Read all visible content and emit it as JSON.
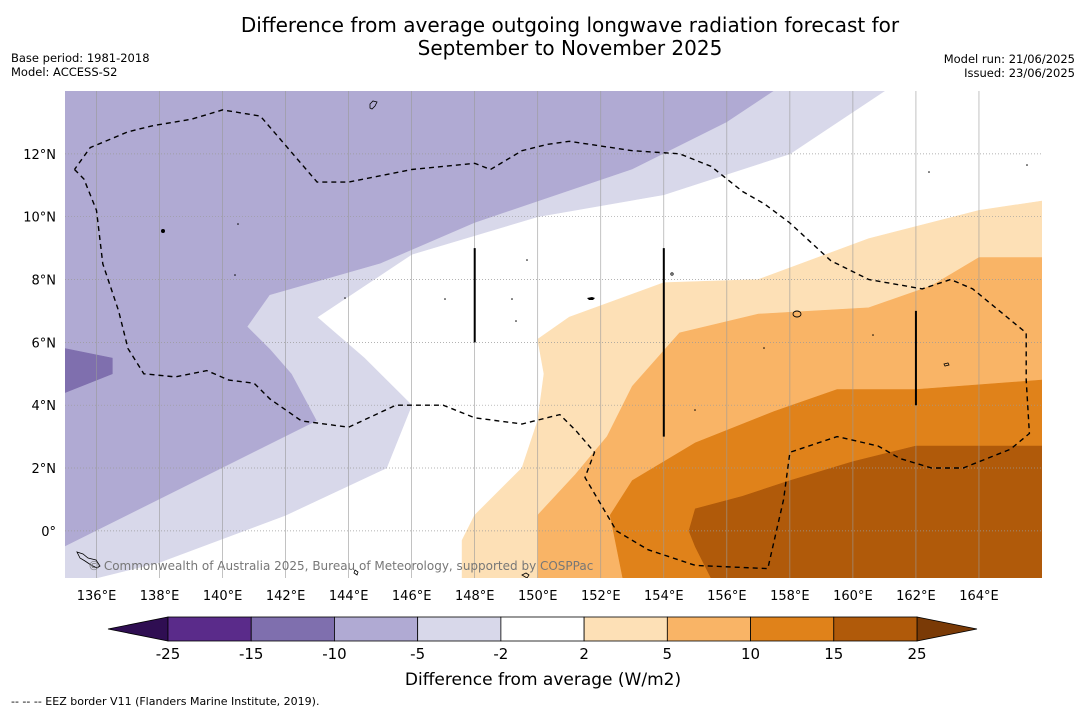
{
  "title": {
    "line1": "Difference from average outgoing longwave radiation forecast for",
    "line2": "September to November 2025"
  },
  "meta": {
    "base_period": "Base period: 1981-2018",
    "model": "Model: ACCESS-S2",
    "model_run": "Model run: 21/06/2025",
    "issued": "Issued: 23/06/2025"
  },
  "copyright": "© Commonwealth of Australia 2025, Bureau of Meteorology, supported by COSPPac",
  "footnote": "--  --  -- EEZ border V11 (Flanders Marine Institute, 2019).",
  "chart_data": {
    "type": "heatmap",
    "title": "Difference from average outgoing longwave radiation forecast for September to November 2025",
    "x_ticks": [
      "136°E",
      "138°E",
      "140°E",
      "142°E",
      "144°E",
      "146°E",
      "148°E",
      "150°E",
      "152°E",
      "154°E",
      "156°E",
      "158°E",
      "160°E",
      "162°E",
      "164°E"
    ],
    "x_values": [
      136,
      138,
      140,
      142,
      144,
      146,
      148,
      150,
      152,
      154,
      156,
      158,
      160,
      162,
      164
    ],
    "y_ticks": [
      "0°",
      "2°N",
      "4°N",
      "6°N",
      "8°N",
      "10°N",
      "12°N"
    ],
    "y_values": [
      0,
      2,
      4,
      6,
      8,
      10,
      12
    ],
    "xlim": [
      135,
      166
    ],
    "ylim": [
      -1.5,
      14
    ],
    "grid": true,
    "colorbar": {
      "label": "Difference from average (W/m2)",
      "tick_labels": [
        "-25",
        "-15",
        "-10",
        "-5",
        "-2",
        "2",
        "5",
        "10",
        "15",
        "25"
      ],
      "colors": [
        "#5a2b8a",
        "#7f6fae",
        "#b0aad3",
        "#d8d8ea",
        "#ffffff",
        "#fde0b6",
        "#f9b466",
        "#e0821a",
        "#b05a0a"
      ],
      "extend_low_color": "#2f0e52",
      "extend_high_color": "#7a3a06"
    },
    "regions": [
      {
        "class": "-10 to -5",
        "color": "#b0aad3",
        "polygon": [
          [
            135,
            14
          ],
          [
            157.5,
            14
          ],
          [
            156,
            13
          ],
          [
            153,
            11.5
          ],
          [
            148,
            9.8
          ],
          [
            145,
            8.5
          ],
          [
            141.5,
            7.5
          ],
          [
            140.8,
            6.5
          ],
          [
            141.5,
            5.8
          ],
          [
            142.2,
            5
          ],
          [
            143,
            3.5
          ],
          [
            140,
            2
          ],
          [
            136,
            0
          ],
          [
            135,
            -0.5
          ]
        ]
      },
      {
        "class": "-5 to -2",
        "color": "#d8d8ea",
        "polygon": [
          [
            157.5,
            14
          ],
          [
            161,
            14
          ],
          [
            158,
            12
          ],
          [
            154,
            10.7
          ],
          [
            150,
            10
          ],
          [
            146,
            8.8
          ],
          [
            143,
            6.8
          ],
          [
            144.5,
            5.5
          ],
          [
            146,
            4
          ],
          [
            145.2,
            2
          ],
          [
            142,
            0.5
          ],
          [
            138,
            -1
          ],
          [
            136,
            -1.5
          ],
          [
            135,
            -1.5
          ],
          [
            135,
            -0.5
          ],
          [
            136,
            0
          ],
          [
            140,
            2
          ],
          [
            143,
            3.5
          ],
          [
            142.2,
            5
          ],
          [
            141.5,
            5.8
          ],
          [
            140.8,
            6.5
          ],
          [
            141.5,
            7.5
          ],
          [
            145,
            8.5
          ],
          [
            148,
            9.8
          ],
          [
            153,
            11.5
          ],
          [
            156,
            13
          ]
        ]
      },
      {
        "class": "-15 to -10",
        "color": "#7f6fae",
        "polygon": [
          [
            135,
            5.8
          ],
          [
            136.5,
            5.5
          ],
          [
            136.5,
            5
          ],
          [
            135,
            4.4
          ]
        ]
      },
      {
        "class": "2 to 5",
        "color": "#fde0b6",
        "polygon": [
          [
            166,
            10.5
          ],
          [
            164,
            10.2
          ],
          [
            160.5,
            9.3
          ],
          [
            157,
            8
          ],
          [
            154,
            7.9
          ],
          [
            151,
            6.8
          ],
          [
            150,
            6.1
          ],
          [
            150.2,
            5
          ],
          [
            150,
            3.5
          ],
          [
            149.5,
            2
          ],
          [
            148,
            0.5
          ],
          [
            147.6,
            -0.3
          ],
          [
            147.6,
            -1.5
          ],
          [
            166,
            -1.5
          ]
        ]
      },
      {
        "class": "5 to 10",
        "color": "#f9b466",
        "polygon": [
          [
            166,
            8.7
          ],
          [
            164,
            8.7
          ],
          [
            162.5,
            7.8
          ],
          [
            160.5,
            7.1
          ],
          [
            157,
            6.9
          ],
          [
            154.5,
            6.3
          ],
          [
            153,
            4.6
          ],
          [
            152.2,
            3
          ],
          [
            151.2,
            1.8
          ],
          [
            150,
            0.5
          ],
          [
            150,
            -1.5
          ],
          [
            166,
            -1.5
          ]
        ]
      },
      {
        "class": "10 to 15",
        "color": "#e0821a",
        "polygon": [
          [
            166,
            4.8
          ],
          [
            162,
            4.5
          ],
          [
            159.5,
            4.5
          ],
          [
            157.5,
            3.8
          ],
          [
            155,
            2.8
          ],
          [
            153,
            1.6
          ],
          [
            152.3,
            0.5
          ],
          [
            152.7,
            -1.5
          ],
          [
            166,
            -1.5
          ]
        ]
      },
      {
        "class": "15 to 25",
        "color": "#b05a0a",
        "polygon": [
          [
            166,
            2.7
          ],
          [
            162,
            2.7
          ],
          [
            160,
            2.2
          ],
          [
            158,
            1.6
          ],
          [
            156.5,
            1.1
          ],
          [
            155,
            0.7
          ],
          [
            154.8,
            0
          ],
          [
            155,
            -0.5
          ],
          [
            155.5,
            -1.5
          ],
          [
            166,
            -1.5
          ]
        ]
      }
    ],
    "eez_border": [
      [
        135.3,
        11.5
      ],
      [
        135.6,
        11.2
      ],
      [
        136,
        10.2
      ],
      [
        136.2,
        8.5
      ],
      [
        136.7,
        7
      ],
      [
        137,
        5.8
      ],
      [
        137.5,
        5
      ],
      [
        138.5,
        4.9
      ],
      [
        139.5,
        5.1
      ],
      [
        140.2,
        4.8
      ],
      [
        141,
        4.7
      ],
      [
        141.5,
        4.2
      ],
      [
        142.5,
        3.5
      ],
      [
        144,
        3.3
      ],
      [
        145.5,
        4
      ],
      [
        147,
        4
      ],
      [
        148,
        3.6
      ],
      [
        149.5,
        3.4
      ],
      [
        150.7,
        3.7
      ],
      [
        151.2,
        3.2
      ],
      [
        151.8,
        2.5
      ],
      [
        151.5,
        1.7
      ],
      [
        152.5,
        0
      ],
      [
        153.5,
        -0.6
      ],
      [
        155,
        -1.1
      ],
      [
        157.3,
        -1.2
      ],
      [
        157.8,
        1
      ],
      [
        158,
        2.5
      ],
      [
        159.5,
        3
      ],
      [
        160.8,
        2.7
      ],
      [
        161.5,
        2.3
      ],
      [
        162.5,
        2
      ],
      [
        163.5,
        2
      ],
      [
        165,
        2.6
      ],
      [
        165.6,
        3.1
      ],
      [
        165.5,
        4.8
      ],
      [
        165.5,
        6.3
      ],
      [
        163.8,
        7.7
      ],
      [
        163.1,
        8
      ],
      [
        162.2,
        7.7
      ],
      [
        160.5,
        8
      ],
      [
        159.3,
        8.6
      ],
      [
        158,
        9.8
      ],
      [
        157.2,
        10.4
      ],
      [
        156.5,
        10.8
      ],
      [
        155.5,
        11.6
      ],
      [
        154.5,
        12
      ],
      [
        153,
        12.1
      ],
      [
        151,
        12.4
      ],
      [
        150.3,
        12.3
      ],
      [
        149.5,
        12.1
      ],
      [
        148.5,
        11.5
      ],
      [
        148,
        11.7
      ],
      [
        146,
        11.5
      ],
      [
        144,
        11.1
      ],
      [
        143,
        11.1
      ],
      [
        141.2,
        13.2
      ],
      [
        140,
        13.4
      ],
      [
        139,
        13.1
      ],
      [
        137.8,
        12.9
      ],
      [
        137,
        12.7
      ],
      [
        135.8,
        12.2
      ],
      [
        135.3,
        11.5
      ]
    ],
    "ensemble_bars": [
      {
        "lon": 148,
        "lat_from": 6,
        "lat_to": 9
      },
      {
        "lon": 154,
        "lat_from": 3,
        "lat_to": 9
      },
      {
        "lon": 162,
        "lat_from": 4,
        "lat_to": 7
      }
    ]
  }
}
